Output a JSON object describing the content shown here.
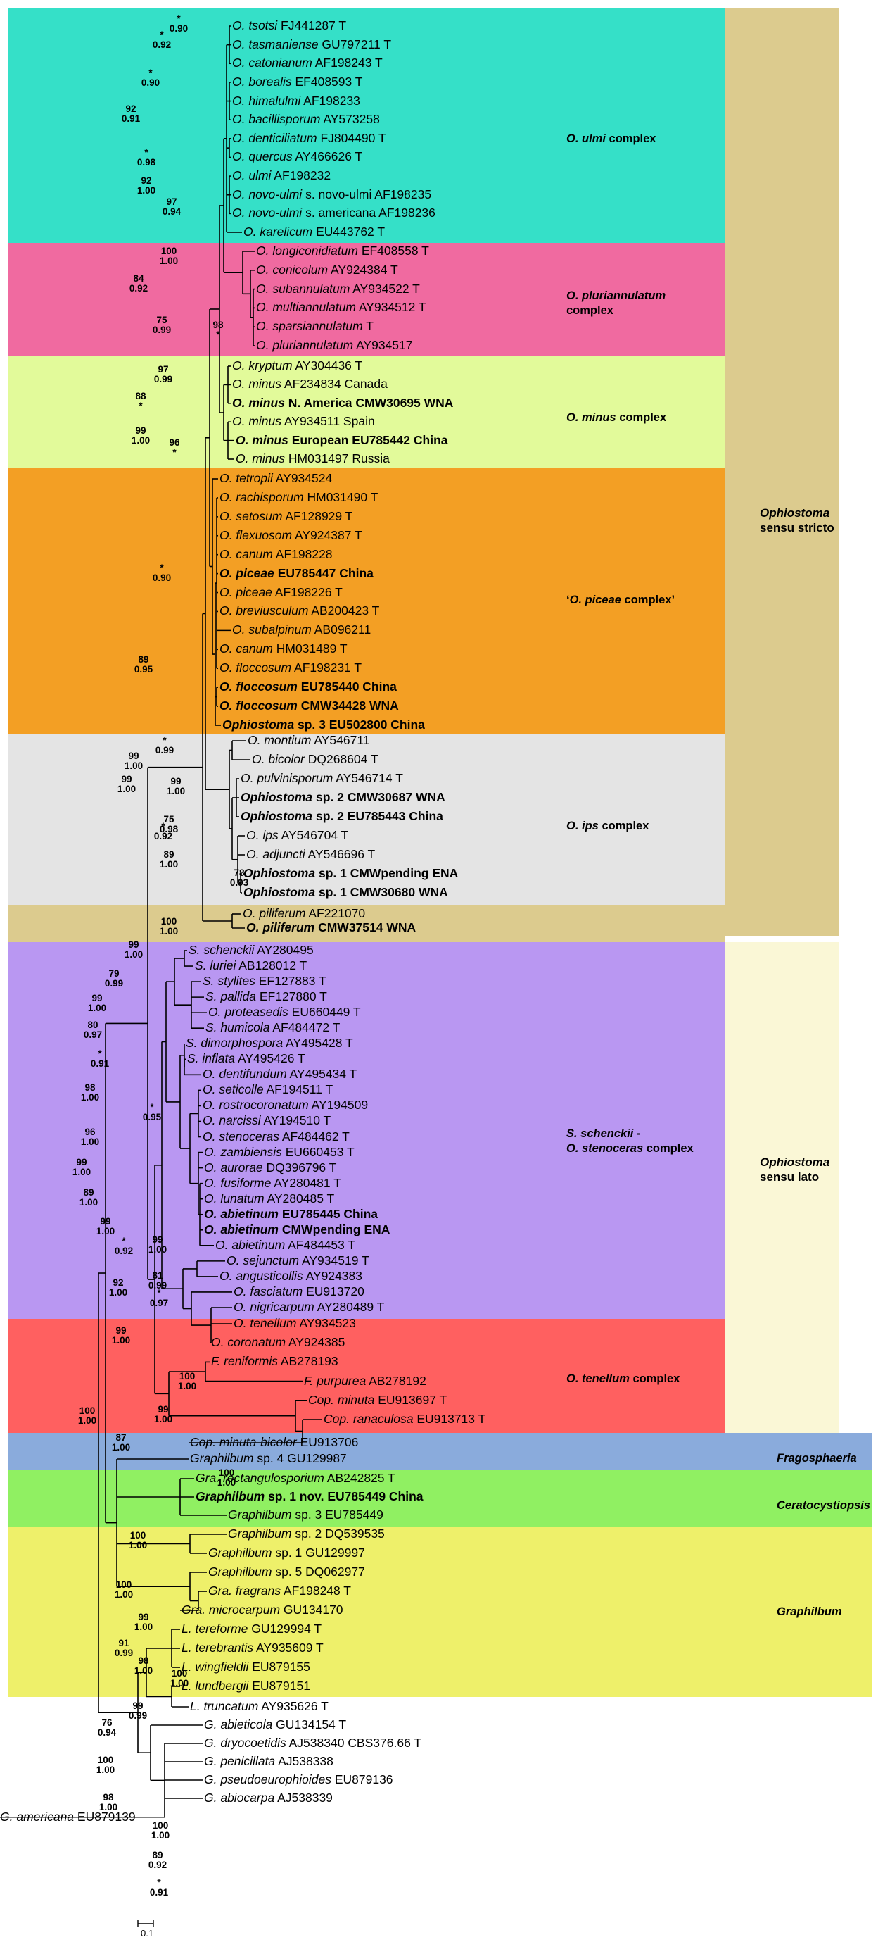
{
  "colors": {
    "ulmi": "#35e0c8",
    "pluri": "#f06aa0",
    "minus": "#e2fa9a",
    "piceae": "#f39f24",
    "ips": "#e4e4e4",
    "piliferum": "#dccb8e",
    "schenckii": "#b997f2",
    "tenellum": "#ff6060",
    "fragosphaeria": "#8aabdc",
    "ceratocystiopsis": "#90f062",
    "graphilbum": "#eef06a",
    "sensu_stricto": "#dccb8e",
    "sensu_lato": "#faf7d6",
    "line": "#000000"
  },
  "groups": [
    {
      "key": "ulmi",
      "label": "O. ulmi complex"
    },
    {
      "key": "pluri",
      "label": "O. pluriannulatum complex"
    },
    {
      "key": "minus",
      "label": "O. minus complex"
    },
    {
      "key": "piceae",
      "label": "‘O. piceae complex’"
    },
    {
      "key": "ips",
      "label": "O. ips complex"
    },
    {
      "key": "schenckii",
      "label": "S. schenckii - O. stenoceras complex"
    },
    {
      "key": "tenellum",
      "label": "O. tenellum complex"
    },
    {
      "key": "fragosphaeria",
      "label": "Fragosphaeria"
    },
    {
      "key": "ceratocystiopsis",
      "label": "Ceratocystiopsis"
    },
    {
      "key": "graphilbum",
      "label": "Graphilbum"
    }
  ],
  "bars": [
    {
      "key": "sensu_stricto",
      "label": "Ophiostoma sensu stricto"
    },
    {
      "key": "sensu_lato",
      "label": "Ophiostoma sensu lato"
    }
  ],
  "taxa": [
    "O. tsotsi FJ441287 T",
    "O. tasmaniense GU797211 T",
    "O. catonianum AF198243 T",
    "O. borealis EF408593 T",
    "O. himalulmi AF198233",
    "O. bacillisporum AY573258",
    "O. denticiliatum FJ804490 T",
    "O. quercus AY466626 T",
    "O. ulmi AF198232",
    "O. novo-ulmi s. novo-ulmi AF198235",
    "O. novo-ulmi s. americana AF198236",
    "O. karelicum EU443762 T",
    "O. longiconidiatum EF408558 T",
    "O. conicolum AY924384 T",
    "O. subannulatum AY934522 T",
    "O. multiannulatum AY934512 T",
    "O. sparsiannulatum T",
    "O. pluriannulatum AY934517",
    "O. kryptum AY304436 T",
    "O. minus AF234834 Canada",
    "O. minus N. America CMW30695 WNA",
    "O. minus AY934511 Spain",
    "O. minus European EU785442 China",
    "O. minus HM031497 Russia",
    "O. tetropii AY934524",
    "O. rachisporum HM031490 T",
    "O. setosum AF128929 T",
    "O. flexuosom AY924387 T",
    "O. canum AF198228",
    "O. piceae EU785447 China",
    "O. piceae AF198226 T",
    "O. breviusculum AB200423 T",
    "O. subalpinum AB096211",
    "O. canum HM031489 T",
    "O. floccosum AF198231 T",
    "O. floccosum EU785440 China",
    "O. floccosum CMW34428 WNA",
    "Ophiostoma sp. 3 EU502800 China",
    "O. montium AY546711",
    "O. bicolor DQ268604 T",
    "O. pulvinisporum AY546714 T",
    "Ophiostoma sp. 2 CMW30687 WNA",
    "Ophiostoma sp. 2  EU785443 China",
    "O. ips AY546704 T",
    "O. adjuncti AY546696 T",
    "Ophiostoma sp. 1 CMWpending ENA",
    "Ophiostoma sp. 1 CMW30680 WNA",
    "O. piliferum AF221070",
    "O. piliferum CMW37514 WNA",
    "S. schenckii AY280495",
    "S. luriei AB128012 T",
    "S. stylites EF127883 T",
    "S. pallida EF127880 T",
    "O. proteasedis EU660449 T",
    "S. humicola AF484472 T",
    "S. dimorphospora AY495428 T",
    "S. inflata AY495426 T",
    "O. dentifundum AY495434 T",
    "O. seticolle AF194511 T",
    "O. rostrocoronatum AY194509",
    "O. narcissi AY194510 T",
    "O. stenoceras AF484462 T",
    "O. zambiensis EU660453 T",
    "O. aurorae DQ396796 T",
    "O. fusiforme AY280481 T",
    "O. lunatum AY280485 T",
    "O. abietinum EU785445 China",
    "O. abietinum CMWpending ENA",
    "O. abietinum AF484453 T",
    "O. sejunctum AY934519 T",
    "O. angusticollis AY924383",
    "O. fasciatum EU913720",
    "O. nigricarpum AY280489 T",
    "O. tenellum AY934523",
    "O. coronatum AY924385",
    "F. reniformis AB278193",
    "F. purpurea AB278192",
    "Cop. minuta EU913697 T",
    "Cop. ranaculosa EU913713 T",
    "Cop. minuta-bicolor EU913706",
    "Graphilbum sp. 4 GU129987",
    "Gra. rectangulosporium AB242825 T",
    "Graphilbum sp. 1 nov. EU785449 China",
    "Graphilbum sp. 3 EU785449",
    "Graphilbum sp. 2 DQ539535",
    "Graphilbum sp. 1 GU129997",
    "Graphilbum sp. 5 DQ062977",
    "Gra. fragrans AF198248 T",
    "Gra. microcarpum GU134170",
    "L. tereforme GU129994 T",
    "L. terebrantis AY935609 T",
    "L. wingfieldii EU879155",
    "L. lundbergii EU879151",
    "L. truncatum AY935626 T",
    "G. abieticola GU134154 T",
    "G. dryocoetidis AJ538340 CBS376.66 T",
    "G. penicillata AJ538338",
    "G. pseudoeurophioides EU879136",
    "G. abiocarpa AJ538339",
    "G. americana EU879139"
  ],
  "supports": [
    "*\n0.90",
    "*\n0.92",
    "*\n0.90",
    "92\n0.91",
    "*\n0.98",
    "92\n1.00",
    "97\n0.94",
    "100\n1.00",
    "84\n0.92",
    "75\n0.99",
    "98\n*",
    "97\n0.99",
    "88\n*",
    "99\n1.00",
    "96\n*",
    "*\n0.90",
    "89\n0.95",
    "*\n0.99",
    "99\n1.00",
    "99\n1.00",
    "99\n1.00",
    "75\n0.98",
    "*\n0.92",
    "89\n1.00",
    "78\n0.93",
    "100\n1.00",
    "99\n1.00",
    "79\n0.99",
    "99\n1.00",
    "80\n0.97",
    "*\n0.91",
    "98\n1.00",
    "*\n0.95",
    "96\n1.00",
    "99\n1.00",
    "89\n1.00",
    "99\n1.00",
    "*\n0.92",
    "99\n1.00",
    "81\n0.99",
    "*\n0.97",
    "92\n1.00",
    "99\n1.00",
    "100\n1.00",
    "99\n1.00",
    "100\n1.00",
    "87\n1.00",
    "100\n1.00",
    "100\n1.00",
    "100\n1.00",
    "99\n1.00",
    "91\n0.99",
    "98\n1.00",
    "100\n1.00",
    "99\n0.99",
    "76\n0.94",
    "100\n1.00",
    "98\n1.00",
    "100\n1.00",
    "89\n0.92",
    "*\n0.91"
  ],
  "scale_label": "0.1"
}
